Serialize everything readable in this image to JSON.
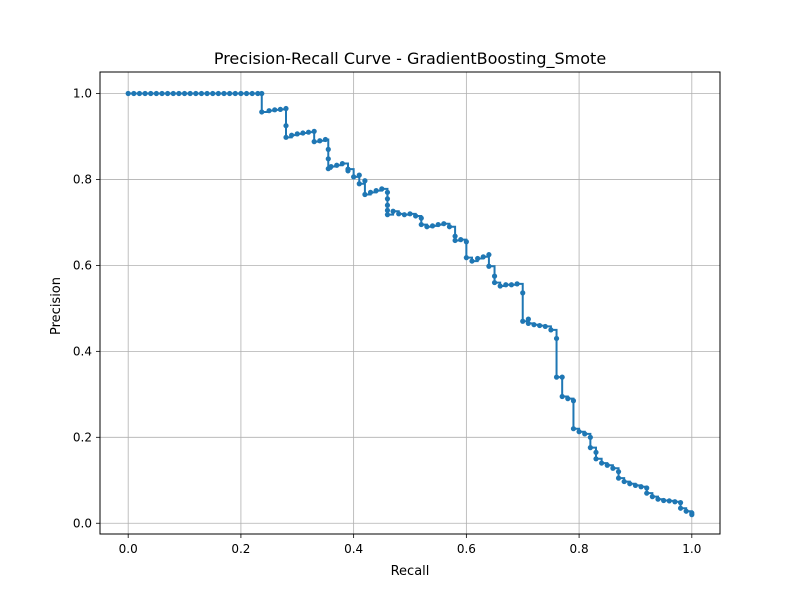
{
  "chart_data": {
    "type": "line",
    "title": "Precision-Recall Curve - GradientBoosting_Smote",
    "xlabel": "Recall",
    "ylabel": "Precision",
    "xlim": [
      -0.05,
      1.05
    ],
    "ylim": [
      -0.025,
      1.05
    ],
    "xticks": [
      "0.0",
      "0.2",
      "0.4",
      "0.6",
      "0.8",
      "1.0"
    ],
    "yticks": [
      "0.0",
      "0.2",
      "0.4",
      "0.6",
      "0.8",
      "1.0"
    ],
    "grid": true,
    "legend": "none",
    "series": [
      {
        "color": "#1f77b4",
        "marker": "circle",
        "drawstyle": "steps-post",
        "x": [
          0.0,
          0.01,
          0.02,
          0.03,
          0.04,
          0.05,
          0.06,
          0.07,
          0.08,
          0.09,
          0.1,
          0.11,
          0.12,
          0.13,
          0.14,
          0.15,
          0.16,
          0.17,
          0.18,
          0.19,
          0.2,
          0.21,
          0.22,
          0.23,
          0.237,
          0.237,
          0.25,
          0.26,
          0.27,
          0.28,
          0.28,
          0.28,
          0.29,
          0.3,
          0.31,
          0.32,
          0.33,
          0.33,
          0.34,
          0.35,
          0.355,
          0.355,
          0.355,
          0.36,
          0.37,
          0.38,
          0.39,
          0.39,
          0.4,
          0.41,
          0.41,
          0.42,
          0.42,
          0.43,
          0.44,
          0.45,
          0.46,
          0.46,
          0.46,
          0.46,
          0.46,
          0.47,
          0.48,
          0.49,
          0.5,
          0.51,
          0.52,
          0.52,
          0.53,
          0.54,
          0.55,
          0.56,
          0.57,
          0.58,
          0.58,
          0.59,
          0.6,
          0.6,
          0.61,
          0.62,
          0.63,
          0.64,
          0.64,
          0.65,
          0.65,
          0.66,
          0.67,
          0.68,
          0.69,
          0.7,
          0.7,
          0.71,
          0.71,
          0.72,
          0.73,
          0.74,
          0.75,
          0.76,
          0.76,
          0.77,
          0.77,
          0.78,
          0.79,
          0.79,
          0.8,
          0.81,
          0.82,
          0.82,
          0.83,
          0.83,
          0.84,
          0.85,
          0.86,
          0.87,
          0.87,
          0.88,
          0.89,
          0.9,
          0.91,
          0.92,
          0.92,
          0.93,
          0.94,
          0.95,
          0.96,
          0.97,
          0.98,
          0.98,
          0.99,
          1.0,
          1.0
        ],
        "y": [
          1.0,
          1.0,
          1.0,
          1.0,
          1.0,
          1.0,
          1.0,
          1.0,
          1.0,
          1.0,
          1.0,
          1.0,
          1.0,
          1.0,
          1.0,
          1.0,
          1.0,
          1.0,
          1.0,
          1.0,
          1.0,
          1.0,
          1.0,
          1.0,
          1.0,
          0.957,
          0.96,
          0.962,
          0.963,
          0.965,
          0.925,
          0.898,
          0.903,
          0.906,
          0.908,
          0.91,
          0.912,
          0.888,
          0.89,
          0.893,
          0.87,
          0.848,
          0.825,
          0.83,
          0.833,
          0.837,
          0.82,
          0.824,
          0.806,
          0.81,
          0.79,
          0.797,
          0.765,
          0.77,
          0.774,
          0.778,
          0.77,
          0.755,
          0.74,
          0.728,
          0.718,
          0.726,
          0.72,
          0.718,
          0.72,
          0.715,
          0.71,
          0.695,
          0.69,
          0.692,
          0.695,
          0.697,
          0.69,
          0.668,
          0.658,
          0.66,
          0.655,
          0.618,
          0.61,
          0.616,
          0.62,
          0.625,
          0.598,
          0.575,
          0.56,
          0.552,
          0.555,
          0.555,
          0.557,
          0.536,
          0.47,
          0.475,
          0.465,
          0.462,
          0.46,
          0.458,
          0.45,
          0.43,
          0.34,
          0.34,
          0.295,
          0.29,
          0.285,
          0.22,
          0.213,
          0.208,
          0.2,
          0.176,
          0.165,
          0.15,
          0.14,
          0.135,
          0.128,
          0.12,
          0.105,
          0.097,
          0.092,
          0.088,
          0.085,
          0.082,
          0.07,
          0.062,
          0.056,
          0.053,
          0.052,
          0.05,
          0.048,
          0.035,
          0.028,
          0.024,
          0.02
        ]
      }
    ]
  }
}
